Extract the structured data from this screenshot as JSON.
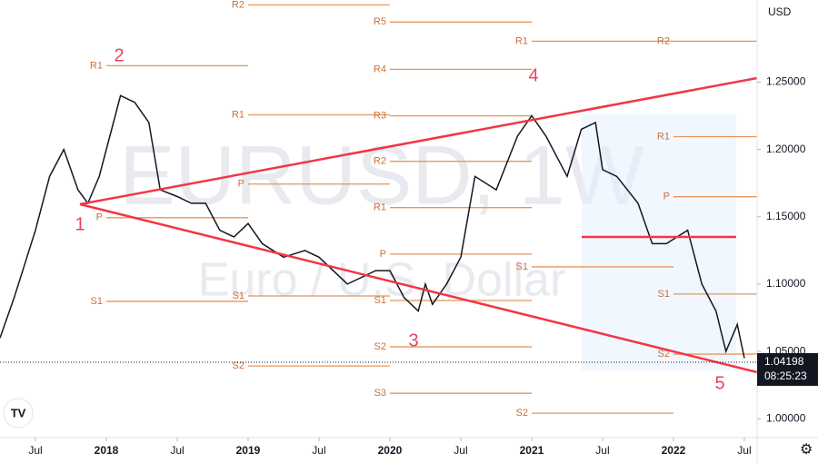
{
  "chart_data": {
    "type": "line",
    "currency": "USD",
    "watermark": "EURUSD, 1W",
    "watermark_sub": "Euro / U.S. Dollar",
    "last_price": {
      "value": 1.04198,
      "label": "1.04198"
    },
    "countdown": "08:25:23",
    "color": "#131722",
    "xlim": [
      2017.25,
      2022.59
    ],
    "ylim": [
      0.986,
      1.311
    ],
    "xticks": [
      {
        "value": 2017.5,
        "label": "Jul"
      },
      2018,
      {
        "value": 2018.5,
        "label": "Jul"
      },
      2019,
      {
        "value": 2019.5,
        "label": "Jul"
      },
      2020,
      {
        "value": 2020.5,
        "label": "Jul"
      },
      2021,
      {
        "value": 2021.5,
        "label": "Jul"
      },
      2022,
      {
        "value": 2022.5,
        "label": "Jul"
      }
    ],
    "yticks": [
      {
        "value": 1.0,
        "label": "1.00000"
      },
      {
        "value": 1.05,
        "label": "1.05000"
      },
      {
        "value": 1.1,
        "label": "1.10000"
      },
      {
        "value": 1.15,
        "label": "1.15000"
      },
      {
        "value": 1.2,
        "label": "1.20000"
      },
      {
        "value": 1.25,
        "label": "1.25000"
      }
    ],
    "x": [
      2017.25,
      2017.35,
      2017.5,
      2017.6,
      2017.7,
      2017.8,
      2017.87,
      2017.95,
      2018.05,
      2018.1,
      2018.2,
      2018.3,
      2018.38,
      2018.5,
      2018.6,
      2018.7,
      2018.8,
      2018.9,
      2019.0,
      2019.1,
      2019.25,
      2019.4,
      2019.5,
      2019.6,
      2019.7,
      2019.8,
      2019.9,
      2020.0,
      2020.1,
      2020.2,
      2020.25,
      2020.3,
      2020.4,
      2020.5,
      2020.6,
      2020.75,
      2020.9,
      2021.0,
      2021.1,
      2021.25,
      2021.35,
      2021.45,
      2021.5,
      2021.6,
      2021.75,
      2021.85,
      2021.95,
      2022.1,
      2022.2,
      2022.3,
      2022.37,
      2022.45,
      2022.5
    ],
    "values": [
      1.06,
      1.09,
      1.14,
      1.18,
      1.2,
      1.17,
      1.16,
      1.18,
      1.22,
      1.24,
      1.235,
      1.22,
      1.17,
      1.165,
      1.16,
      1.16,
      1.14,
      1.135,
      1.145,
      1.13,
      1.12,
      1.125,
      1.12,
      1.11,
      1.1,
      1.105,
      1.11,
      1.11,
      1.09,
      1.08,
      1.1,
      1.085,
      1.1,
      1.12,
      1.18,
      1.17,
      1.21,
      1.225,
      1.21,
      1.18,
      1.215,
      1.22,
      1.185,
      1.18,
      1.16,
      1.13,
      1.13,
      1.14,
      1.1,
      1.08,
      1.05,
      1.07,
      1.045
    ],
    "pivots": [
      {
        "start": 2018,
        "levels": [
          {
            "name": "R1",
            "value": 1.2622
          },
          {
            "name": "P",
            "value": 1.1493
          },
          {
            "name": "S1",
            "value": 1.0872
          }
        ]
      },
      {
        "start": 2019,
        "levels": [
          {
            "name": "R2",
            "value": 1.3074
          },
          {
            "name": "R1",
            "value": 1.2257
          },
          {
            "name": "P",
            "value": 1.1743
          },
          {
            "name": "S1",
            "value": 1.0912
          },
          {
            "name": "S2",
            "value": 1.0392
          }
        ]
      },
      {
        "start": 2020,
        "levels": [
          {
            "name": "R5",
            "value": 1.2946
          },
          {
            "name": "R4",
            "value": 1.2595
          },
          {
            "name": "R3",
            "value": 1.225
          },
          {
            "name": "R2",
            "value": 1.1912
          },
          {
            "name": "R1",
            "value": 1.1568
          },
          {
            "name": "P",
            "value": 1.1223
          },
          {
            "name": "S1",
            "value": 1.0878
          },
          {
            "name": "S2",
            "value": 1.0534
          },
          {
            "name": "S3",
            "value": 1.0189
          }
        ]
      },
      {
        "start": 2021,
        "levels": [
          {
            "name": "R1",
            "value": 1.2804
          },
          {
            "name": "S1",
            "value": 1.1128
          },
          {
            "name": "S2",
            "value": 1.0041
          }
        ]
      },
      {
        "start": 2022,
        "levels": [
          {
            "name": "R2",
            "value": 1.2804
          },
          {
            "name": "R1",
            "value": 1.2095
          },
          {
            "name": "P",
            "value": 1.1649
          },
          {
            "name": "S1",
            "value": 1.0926
          },
          {
            "name": "S2",
            "value": 1.048
          }
        ]
      }
    ],
    "waves": [
      "1",
      "2",
      "3",
      "4",
      "5"
    ]
  }
}
